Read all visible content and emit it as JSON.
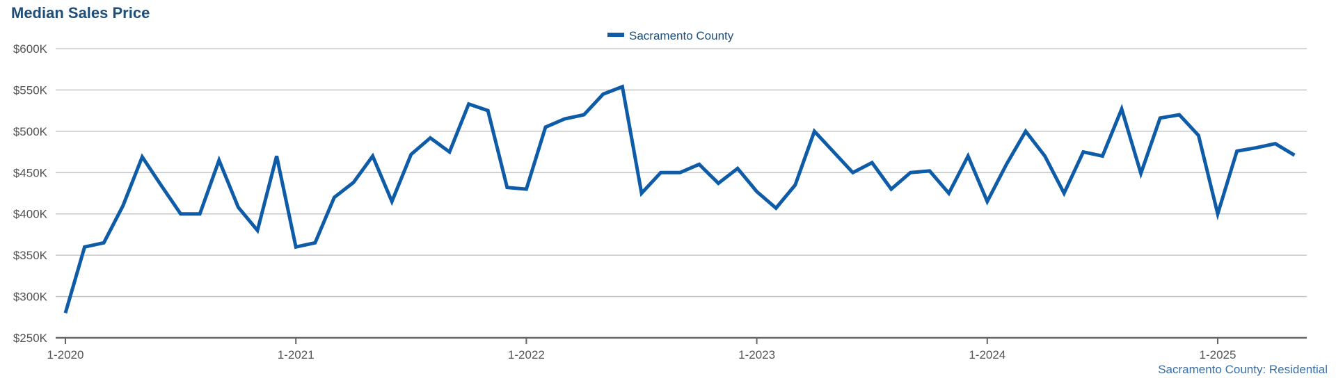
{
  "chart_data": {
    "type": "line",
    "title": "Median Sales Price",
    "xlabel": "",
    "ylabel": "",
    "source_note": "Sacramento County: Residential",
    "legend_position": "top-center",
    "grid": true,
    "ylim": [
      250000,
      600000
    ],
    "y_ticks": [
      {
        "value": 250000,
        "label": "$250K"
      },
      {
        "value": 300000,
        "label": "$300K"
      },
      {
        "value": 350000,
        "label": "$350K"
      },
      {
        "value": 400000,
        "label": "$400K"
      },
      {
        "value": 450000,
        "label": "$450K"
      },
      {
        "value": 500000,
        "label": "$500K"
      },
      {
        "value": 550000,
        "label": "$550K"
      },
      {
        "value": 600000,
        "label": "$600K"
      }
    ],
    "x_ticks": [
      {
        "value": "2020-01",
        "label": "1-2020"
      },
      {
        "value": "2021-01",
        "label": "1-2021"
      },
      {
        "value": "2022-01",
        "label": "1-2022"
      },
      {
        "value": "2023-01",
        "label": "1-2023"
      },
      {
        "value": "2024-01",
        "label": "1-2024"
      },
      {
        "value": "2025-01",
        "label": "1-2025"
      }
    ],
    "x": [
      "2020-01",
      "2020-02",
      "2020-03",
      "2020-04",
      "2020-05",
      "2020-06",
      "2020-07",
      "2020-08",
      "2020-09",
      "2020-10",
      "2020-11",
      "2020-12",
      "2021-01",
      "2021-02",
      "2021-03",
      "2021-04",
      "2021-05",
      "2021-06",
      "2021-07",
      "2021-08",
      "2021-09",
      "2021-10",
      "2021-11",
      "2021-12",
      "2022-01",
      "2022-02",
      "2022-03",
      "2022-04",
      "2022-05",
      "2022-06",
      "2022-07",
      "2022-08",
      "2022-09",
      "2022-10",
      "2022-11",
      "2022-12",
      "2023-01",
      "2023-02",
      "2023-03",
      "2023-04",
      "2023-05",
      "2023-06",
      "2023-07",
      "2023-08",
      "2023-09",
      "2023-10",
      "2023-11",
      "2023-12",
      "2024-01",
      "2024-02",
      "2024-03",
      "2024-04",
      "2024-05",
      "2024-06",
      "2024-07",
      "2024-08",
      "2024-09",
      "2024-10",
      "2024-11",
      "2024-12",
      "2025-01",
      "2025-02",
      "2025-03",
      "2025-04",
      "2025-05"
    ],
    "series": [
      {
        "name": "Sacramento County",
        "color": "#0e5ca8",
        "values": [
          280000,
          360000,
          365000,
          410000,
          469000,
          434000,
          400000,
          400000,
          465000,
          408000,
          380000,
          470000,
          360000,
          365000,
          420000,
          438000,
          470000,
          415000,
          472000,
          492000,
          475000,
          533000,
          525000,
          432000,
          430000,
          505000,
          515000,
          520000,
          545000,
          554000,
          425000,
          450000,
          450000,
          460000,
          437000,
          455000,
          427000,
          407000,
          435000,
          500000,
          475000,
          450000,
          462000,
          430000,
          450000,
          452000,
          425000,
          470000,
          415000,
          460000,
          500000,
          470000,
          425000,
          475000,
          470000,
          527000,
          449000,
          516000,
          520000,
          495000,
          400000,
          476000,
          480000,
          485000,
          471000
        ]
      }
    ]
  }
}
